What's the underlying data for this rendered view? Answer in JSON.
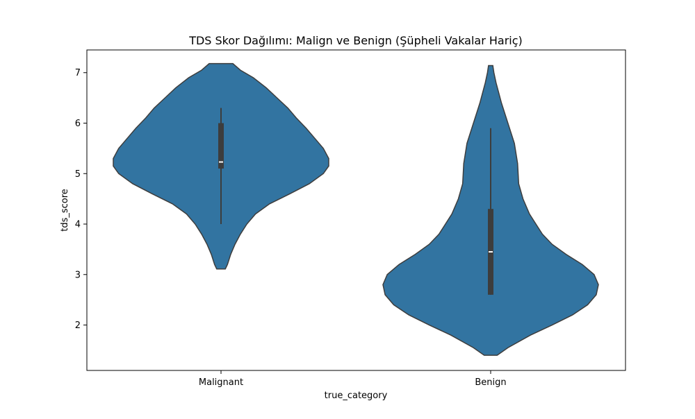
{
  "chart_data": {
    "type": "violin",
    "title": "TDS Skor Dağılımı: Malign ve Benign (Şüpheli Vakalar Hariç)",
    "xlabel": "true_category",
    "ylabel": "tds_score",
    "categories": [
      "Malignant",
      "Benign"
    ],
    "ylim": [
      1.1,
      7.45
    ],
    "yticks": [
      2,
      3,
      4,
      5,
      6,
      7
    ],
    "grid": false,
    "colors": {
      "violin_fill": "#3274a1",
      "violin_edge": "#3d3d3d",
      "box": "#3d3d3d",
      "median": "#ffffff"
    },
    "series": [
      {
        "category": "Malignant",
        "min": 3.11,
        "max": 7.18,
        "whisker_low": 4.0,
        "q1": 5.1,
        "median": 5.23,
        "q3": 6.0,
        "whisker_high": 6.3,
        "density": [
          [
            3.11,
            0.04
          ],
          [
            3.2,
            0.06
          ],
          [
            3.4,
            0.09
          ],
          [
            3.6,
            0.13
          ],
          [
            3.8,
            0.18
          ],
          [
            4.0,
            0.24
          ],
          [
            4.2,
            0.32
          ],
          [
            4.4,
            0.45
          ],
          [
            4.6,
            0.64
          ],
          [
            4.8,
            0.82
          ],
          [
            5.0,
            0.95
          ],
          [
            5.15,
            1.0
          ],
          [
            5.3,
            1.0
          ],
          [
            5.5,
            0.95
          ],
          [
            5.7,
            0.87
          ],
          [
            5.9,
            0.79
          ],
          [
            6.1,
            0.7
          ],
          [
            6.3,
            0.62
          ],
          [
            6.5,
            0.52
          ],
          [
            6.7,
            0.42
          ],
          [
            6.9,
            0.3
          ],
          [
            7.05,
            0.18
          ],
          [
            7.18,
            0.11
          ]
        ]
      },
      {
        "category": "Benign",
        "min": 1.4,
        "max": 7.14,
        "whisker_low": 2.6,
        "q1": 2.6,
        "median": 3.45,
        "q3": 4.3,
        "whisker_high": 5.9,
        "density": [
          [
            1.4,
            0.06
          ],
          [
            1.55,
            0.16
          ],
          [
            1.8,
            0.37
          ],
          [
            2.0,
            0.57
          ],
          [
            2.2,
            0.76
          ],
          [
            2.4,
            0.9
          ],
          [
            2.6,
            0.98
          ],
          [
            2.8,
            1.0
          ],
          [
            3.0,
            0.96
          ],
          [
            3.2,
            0.85
          ],
          [
            3.4,
            0.7
          ],
          [
            3.6,
            0.57
          ],
          [
            3.8,
            0.48
          ],
          [
            4.0,
            0.42
          ],
          [
            4.2,
            0.36
          ],
          [
            4.5,
            0.3
          ],
          [
            4.8,
            0.26
          ],
          [
            5.2,
            0.25
          ],
          [
            5.6,
            0.22
          ],
          [
            6.0,
            0.16
          ],
          [
            6.4,
            0.1
          ],
          [
            6.8,
            0.05
          ],
          [
            7.0,
            0.03
          ],
          [
            7.14,
            0.02
          ]
        ]
      }
    ]
  }
}
